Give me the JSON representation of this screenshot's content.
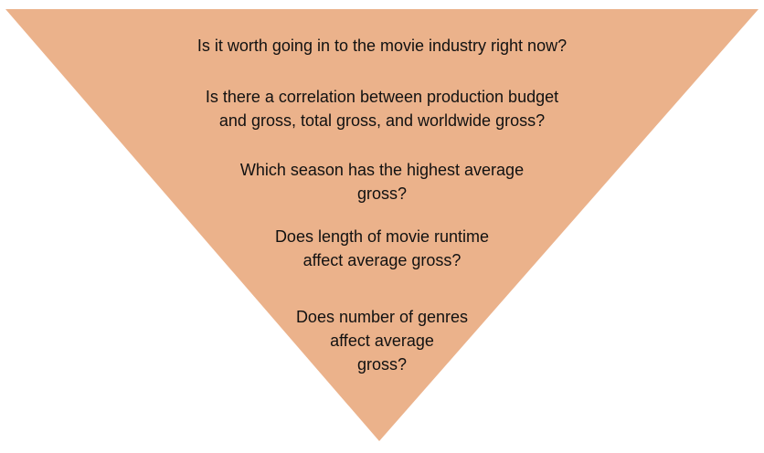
{
  "diagram": {
    "shape_color": "#ebb28b",
    "text_color": "#111111",
    "levels": [
      {
        "lines": [
          "Is it worth going in to the movie industry right now?"
        ]
      },
      {
        "lines": [
          "Is there a correlation between production budget",
          "and gross, total gross, and worldwide gross?"
        ]
      },
      {
        "lines": [
          "Which season has the highest average",
          "gross?"
        ]
      },
      {
        "lines": [
          "Does length of movie runtime",
          "affect average gross?"
        ]
      },
      {
        "lines": [
          "Does number of genres",
          "affect average",
          "gross?"
        ]
      }
    ]
  }
}
